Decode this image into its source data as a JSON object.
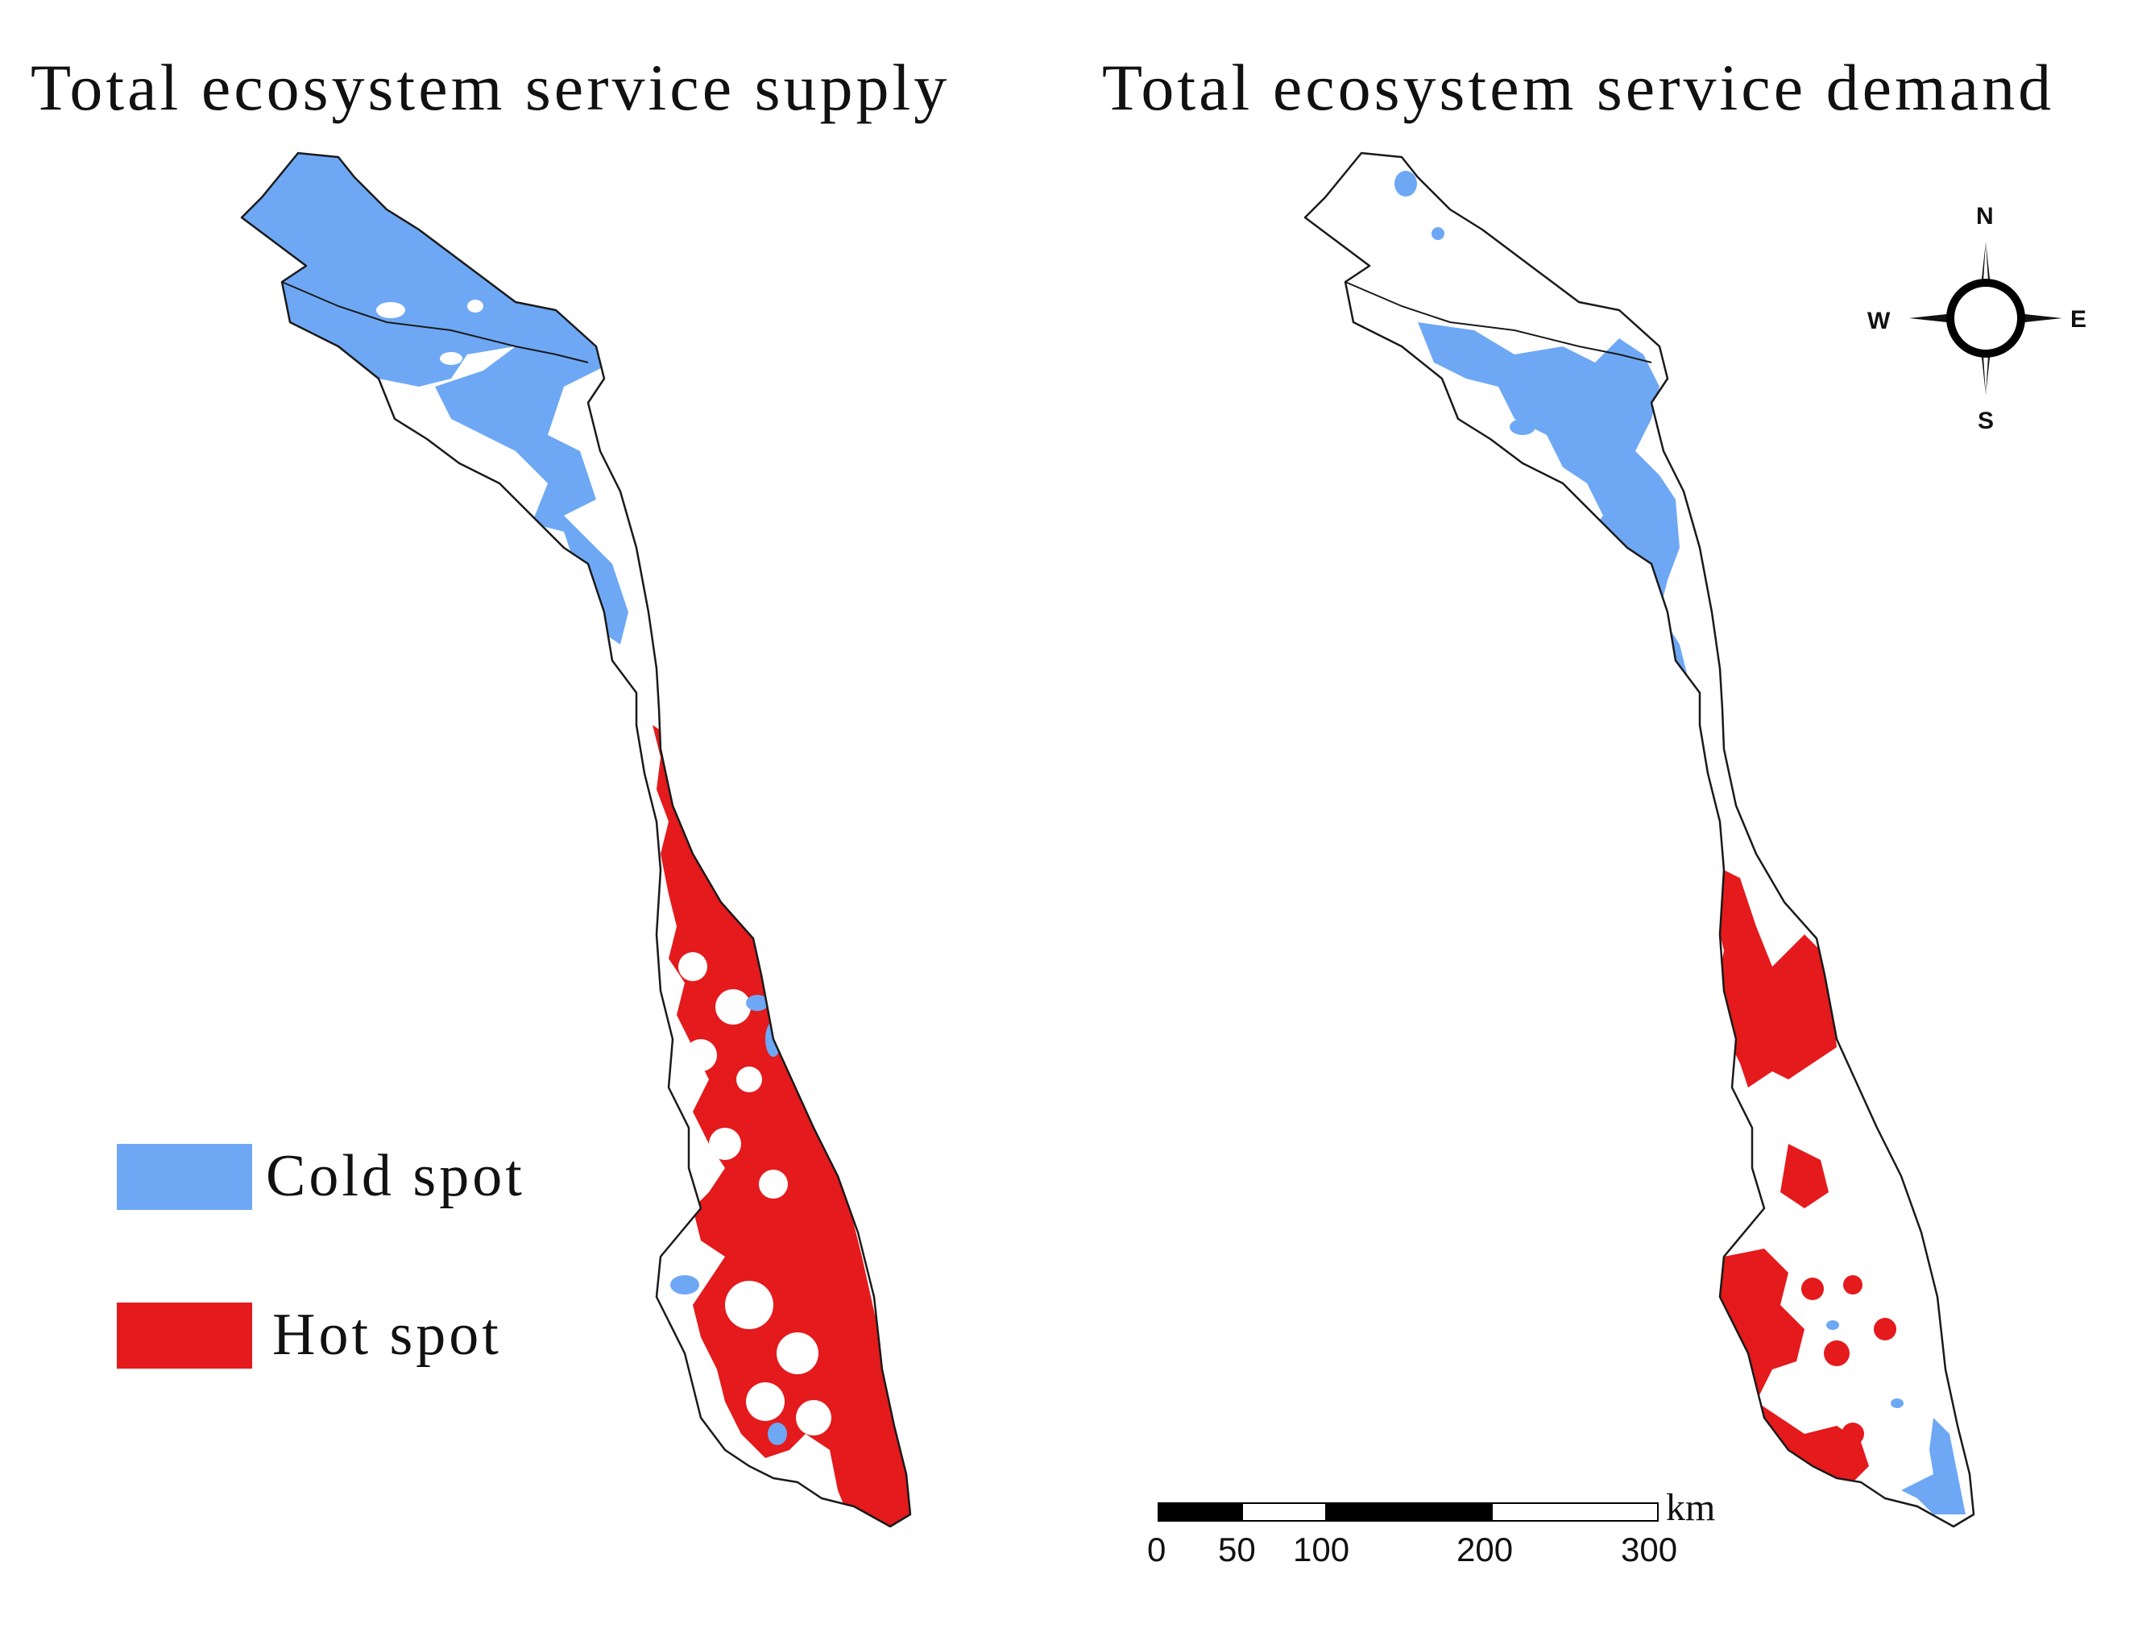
{
  "panels": {
    "supply": {
      "title": "Total ecosystem service supply"
    },
    "demand": {
      "title": "Total ecosystem service demand"
    }
  },
  "legend": {
    "items": [
      {
        "label": "Cold spot",
        "color": "#6EA8F5"
      },
      {
        "label": "Hot spot",
        "color": "#E41A1C"
      }
    ]
  },
  "scale_bar": {
    "unit": "km",
    "ticks": [
      "0",
      "50",
      "100",
      "200",
      "300"
    ]
  },
  "compass": {
    "n": "N",
    "s": "S",
    "e": "E",
    "w": "W"
  },
  "colors": {
    "cold": "#6EA8F5",
    "hot": "#E41A1C",
    "outline": "#1a1a1a"
  }
}
